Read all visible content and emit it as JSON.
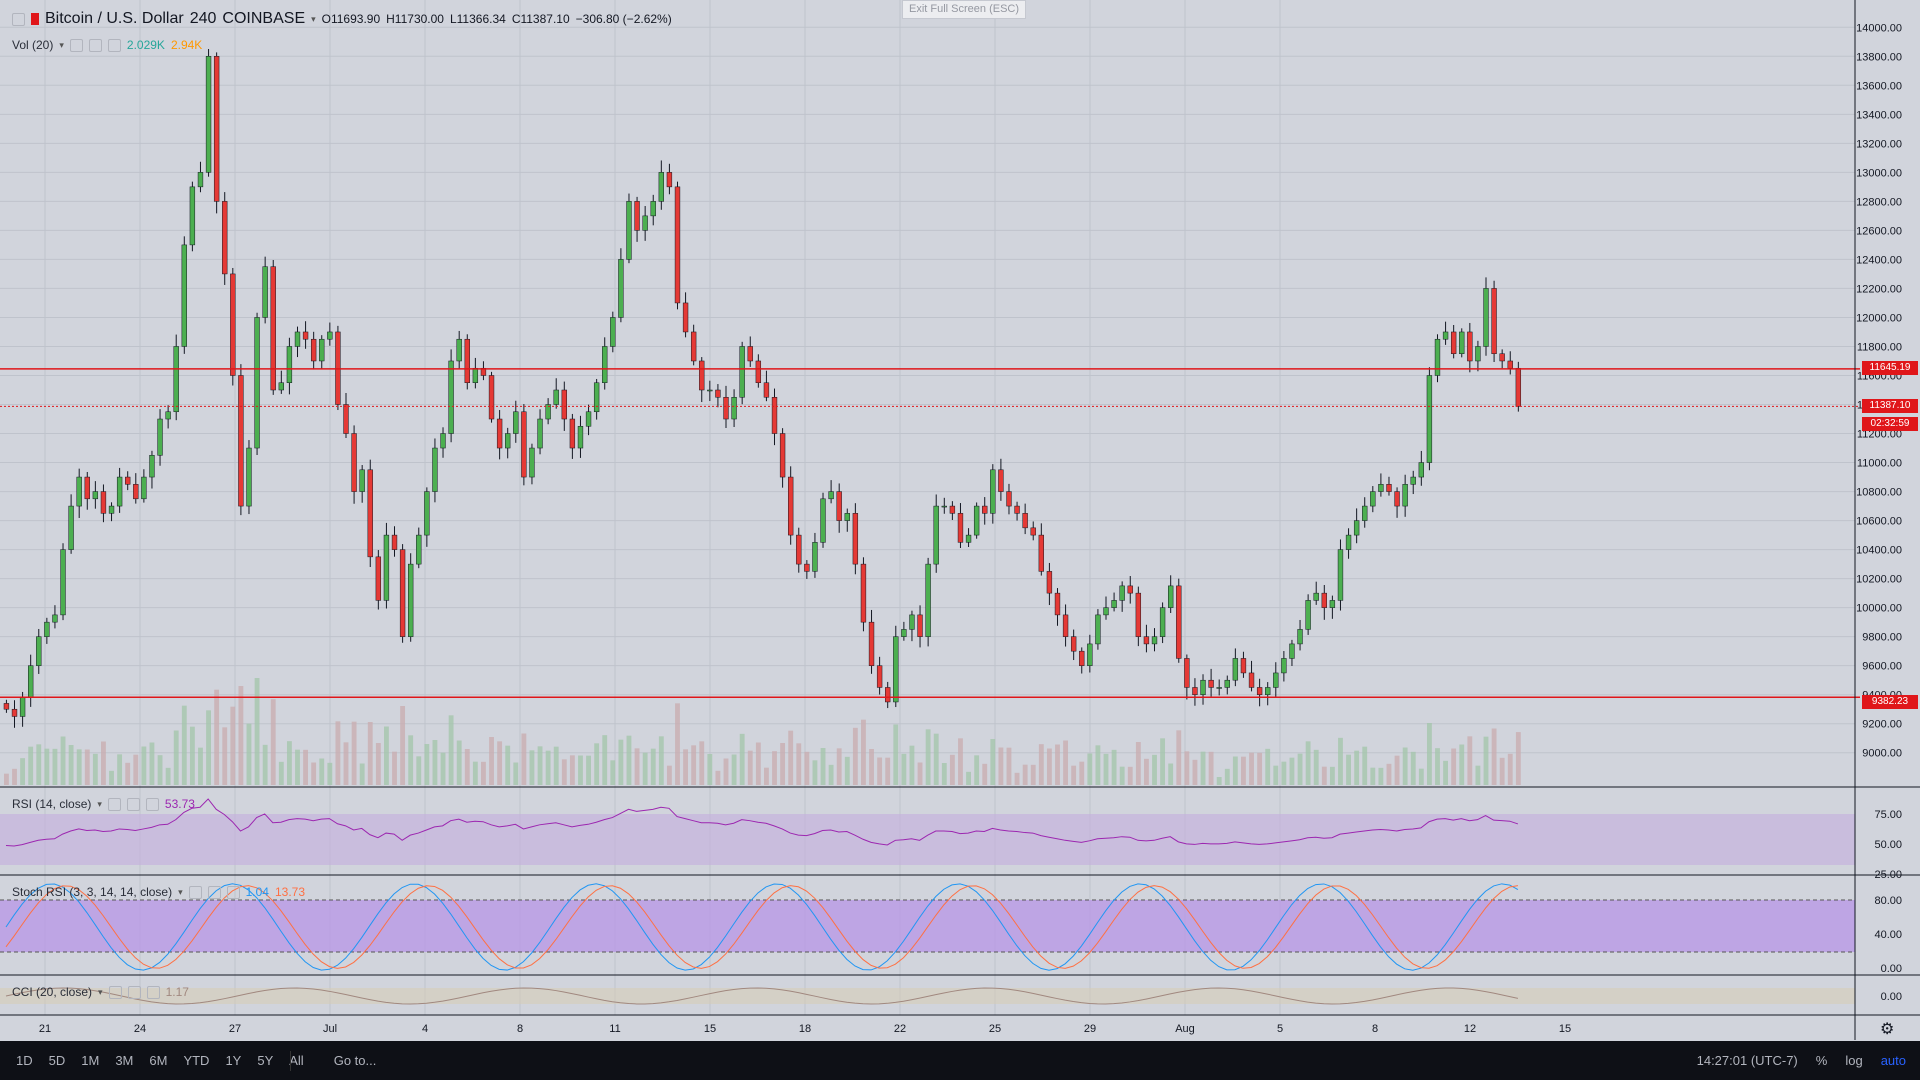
{
  "header": {
    "symbol": "Bitcoin / U.S. Dollar",
    "interval": "240",
    "exchange": "COINBASE",
    "open": "O11693.90",
    "high": "H11730.00",
    "low": "L11366.34",
    "close": "C11387.10",
    "change": "−306.80 (−2.62%)"
  },
  "vol_label": {
    "name": "Vol (20)",
    "v1": "2.029K",
    "v2": "2.94K"
  },
  "exit_fullscreen": "Exit Full Screen (ESC)",
  "price_axis": [
    "14000.00",
    "13800.00",
    "13600.00",
    "13400.00",
    "13200.00",
    "13000.00",
    "12800.00",
    "12600.00",
    "12400.00",
    "12200.00",
    "12000.00",
    "11800.00",
    "11600.00",
    "11400.00",
    "11200.00",
    "11000.00",
    "10800.00",
    "10600.00",
    "10400.00",
    "10200.00",
    "10000.00",
    "9800.00",
    "9600.00",
    "9400.00",
    "9200.00",
    "9000.00"
  ],
  "price_tags": {
    "level_high": "11645.19",
    "last": "11387.10",
    "countdown": "02:32:59",
    "level_low": "9382.23"
  },
  "rsi": {
    "label": "RSI (14, close)",
    "value": "53.73",
    "axis": [
      "75.00",
      "50.00",
      "25.00"
    ]
  },
  "stoch": {
    "label": "Stoch RSI (3, 3, 14, 14, close)",
    "k": "1.04",
    "d": "13.73",
    "axis": [
      "80.00",
      "40.00",
      "0.00"
    ]
  },
  "cci": {
    "label": "CCI (20, close)",
    "value": "1.17",
    "axis": [
      "0.00"
    ]
  },
  "time_axis": [
    "21",
    "24",
    "27",
    "Jul",
    "4",
    "8",
    "11",
    "15",
    "18",
    "22",
    "25",
    "29",
    "Aug",
    "5",
    "8",
    "12",
    "15"
  ],
  "bottom": {
    "ranges": [
      "1D",
      "5D",
      "1M",
      "3M",
      "6M",
      "YTD",
      "1Y",
      "5Y",
      "All"
    ],
    "goto": "Go to...",
    "clock": "14:27:01 (UTC-7)",
    "pct": "%",
    "log": "log",
    "auto": "auto"
  },
  "colors": {
    "up": "#4caf50",
    "down": "#e53935",
    "level": "#e0161a",
    "rsi": "#9c27b0",
    "stoch_k": "#2196f3",
    "stoch_d": "#ff7043",
    "cci": "#a1887f"
  },
  "chart_data": {
    "type": "candlestick",
    "ylim": [
      8900,
      14100
    ],
    "closes": [
      9300,
      9250,
      9380,
      9600,
      9800,
      9900,
      9950,
      10400,
      10700,
      10900,
      10750,
      10800,
      10650,
      10700,
      10900,
      10850,
      10750,
      10900,
      11050,
      11300,
      11350,
      11800,
      12500,
      12900,
      13000,
      13800,
      12800,
      12300,
      11600,
      10700,
      11100,
      12000,
      12350,
      11500,
      11550,
      11800,
      11900,
      11850,
      11700,
      11850,
      11900,
      11400,
      11200,
      10800,
      10950,
      10350,
      10050,
      10500,
      10400,
      9800,
      10300,
      10500,
      10800,
      11100,
      11200,
      11700,
      11850,
      11550,
      11650,
      11600,
      11300,
      11100,
      11200,
      11350,
      10900,
      11100,
      11300,
      11400,
      11500,
      11300,
      11100,
      11250,
      11350,
      11550,
      11800,
      12000,
      12400,
      12800,
      12600,
      12700,
      12800,
      13000,
      12900,
      12100,
      11900,
      11700,
      11500,
      11500,
      11450,
      11300,
      11450,
      11800,
      11700,
      11550,
      11450,
      11200,
      10900,
      10500,
      10300,
      10250,
      10450,
      10750,
      10800,
      10600,
      10650,
      10300,
      9900,
      9600,
      9450,
      9350,
      9800,
      9850,
      9950,
      9800,
      10300,
      10700,
      10700,
      10650,
      10450,
      10500,
      10700,
      10650,
      10950,
      10800,
      10700,
      10650,
      10550,
      10500,
      10250,
      10100,
      9950,
      9800,
      9700,
      9600,
      9750,
      9950,
      10000,
      10050,
      10150,
      10100,
      9800,
      9750,
      9800,
      10000,
      10150,
      9650,
      9450,
      9400,
      9500,
      9450,
      9450,
      9500,
      9650,
      9550,
      9450,
      9400,
      9450,
      9550,
      9650,
      9750,
      9850,
      10050,
      10100,
      10000,
      10050,
      10400,
      10500,
      10600,
      10700,
      10800,
      10850,
      10800,
      10700,
      10850,
      10900,
      11000,
      11600,
      11850,
      11900,
      11750,
      11900,
      11700,
      11800,
      12200,
      11750,
      11700,
      11650,
      11387
    ]
  }
}
